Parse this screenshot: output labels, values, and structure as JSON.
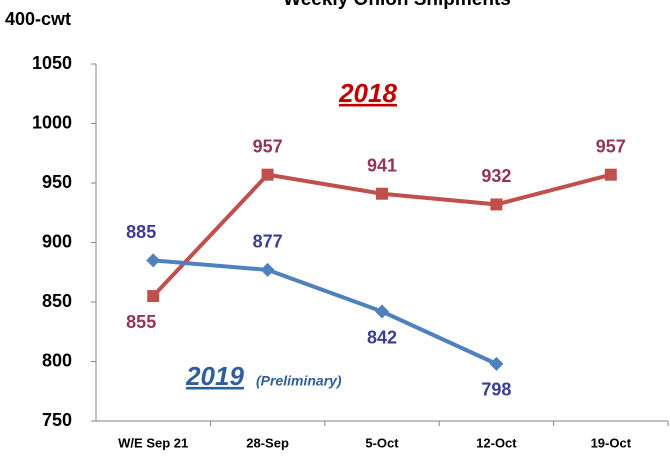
{
  "chart_data": {
    "type": "line",
    "title": "Weekly Onion Shipments",
    "y_label": "400-cwt",
    "annotation": "(Preliminary)",
    "categories": [
      "W/E Sep 21",
      "28-Sep",
      "5-Oct",
      "12-Oct",
      "19-Oct"
    ],
    "series": [
      {
        "name": "2018",
        "color": "#c0504d",
        "label_color": "#953553",
        "marker": "square",
        "values": [
          855,
          957,
          941,
          932,
          957
        ]
      },
      {
        "name": "2019",
        "color": "#4f81bd",
        "label_color": "#3b3b98",
        "marker": "diamond",
        "values": [
          885,
          877,
          842,
          798,
          null
        ]
      }
    ],
    "ylim": [
      750,
      1050
    ],
    "yticks": [
      750,
      800,
      850,
      900,
      950,
      1000,
      1050
    ],
    "grid": false
  }
}
